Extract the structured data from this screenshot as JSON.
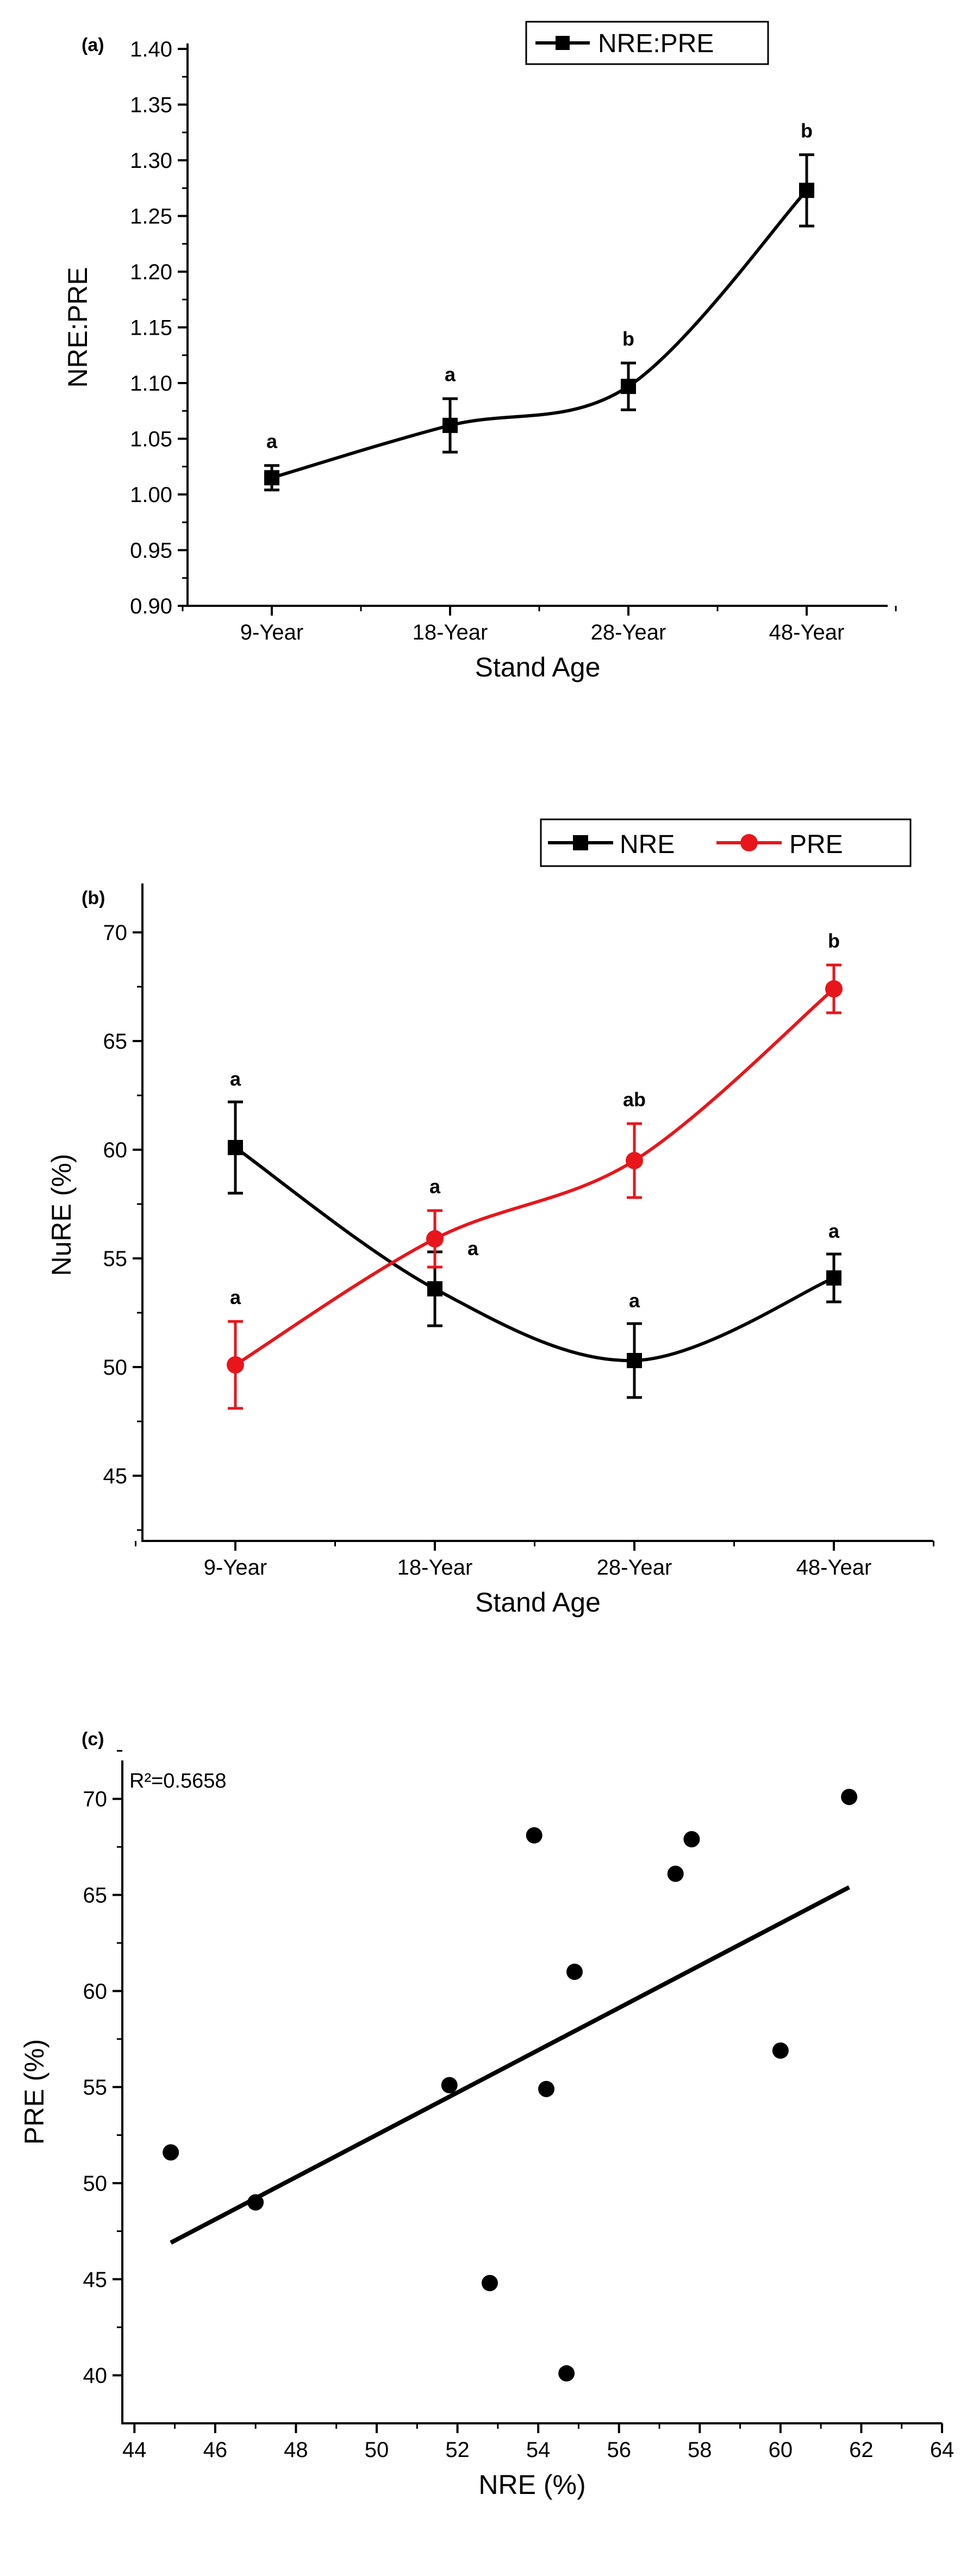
{
  "figure": {
    "description_labels": [
      "(a)",
      "(b)",
      "(c)"
    ]
  },
  "chart_data": [
    {
      "type": "line",
      "panel_label": "(a)",
      "title": "",
      "xlabel": "Stand Age",
      "ylabel": "NRE:PRE",
      "categories": [
        "9-Year",
        "18-Year",
        "28-Year",
        "48-Year"
      ],
      "ylim": [
        0.9,
        1.4
      ],
      "yticks": [
        "0.90",
        "0.95",
        "1.00",
        "1.05",
        "1.10",
        "1.15",
        "1.20",
        "1.25",
        "1.30",
        "1.35",
        "1.40"
      ],
      "ytick_values": [
        0.9,
        0.95,
        1.0,
        1.05,
        1.1,
        1.15,
        1.2,
        1.25,
        1.3,
        1.35,
        1.4
      ],
      "series": [
        {
          "name": "NRE:PRE",
          "color": "#000000",
          "marker": "square",
          "values": [
            1.015,
            1.062,
            1.097,
            1.273
          ],
          "errors": [
            0.011,
            0.024,
            0.021,
            0.032
          ],
          "letters": [
            "a",
            "a",
            "b",
            "b"
          ]
        }
      ],
      "legend": "top-right"
    },
    {
      "type": "line",
      "panel_label": "(b)",
      "title": "",
      "xlabel": "Stand Age",
      "ylabel": "NuRE (%)",
      "categories": [
        "9-Year",
        "18-Year",
        "28-Year",
        "48-Year"
      ],
      "ylim": [
        42,
        72
      ],
      "yticks": [
        "45",
        "50",
        "55",
        "60",
        "65",
        "70"
      ],
      "ytick_values": [
        45,
        50,
        55,
        60,
        65,
        70
      ],
      "series": [
        {
          "name": "NRE",
          "color": "#000000",
          "marker": "square",
          "values": [
            60.1,
            53.6,
            50.3,
            54.1
          ],
          "errors": [
            2.1,
            1.7,
            1.7,
            1.1
          ],
          "letters": [
            "a",
            "a",
            "a",
            "a"
          ]
        },
        {
          "name": "PRE",
          "color": "#e8161b",
          "marker": "circle",
          "values": [
            50.1,
            55.9,
            59.5,
            67.4
          ],
          "errors": [
            2.0,
            1.3,
            1.7,
            1.1
          ],
          "letters": [
            "a",
            "a",
            "ab",
            "b"
          ]
        }
      ],
      "legend": "top-right"
    },
    {
      "type": "scatter",
      "panel_label": "(c)",
      "title": "",
      "xlabel": "NRE (%)",
      "ylabel": "PRE (%)",
      "annotation": "R²=0.5658",
      "xlim": [
        43.7,
        64
      ],
      "ylim": [
        37.5,
        72
      ],
      "xticks": [
        "44",
        "46",
        "48",
        "50",
        "52",
        "54",
        "56",
        "58",
        "60",
        "62",
        "64"
      ],
      "xtick_values": [
        44,
        46,
        48,
        50,
        52,
        54,
        56,
        58,
        60,
        62,
        64
      ],
      "yticks": [
        "40",
        "45",
        "50",
        "55",
        "60",
        "65",
        "70"
      ],
      "ytick_values": [
        40,
        45,
        50,
        55,
        60,
        65,
        70
      ],
      "points": [
        {
          "x": 44.9,
          "y": 51.6
        },
        {
          "x": 47.0,
          "y": 49.0
        },
        {
          "x": 51.8,
          "y": 55.1
        },
        {
          "x": 52.8,
          "y": 44.8
        },
        {
          "x": 53.9,
          "y": 68.1
        },
        {
          "x": 54.2,
          "y": 54.9
        },
        {
          "x": 54.7,
          "y": 40.1
        },
        {
          "x": 54.9,
          "y": 61.0
        },
        {
          "x": 57.4,
          "y": 66.1
        },
        {
          "x": 57.8,
          "y": 67.9
        },
        {
          "x": 60.0,
          "y": 56.9
        },
        {
          "x": 61.7,
          "y": 70.1
        }
      ],
      "fit_line": {
        "x1": 44.9,
        "y1": 46.9,
        "x2": 61.7,
        "y2": 65.4
      }
    }
  ]
}
